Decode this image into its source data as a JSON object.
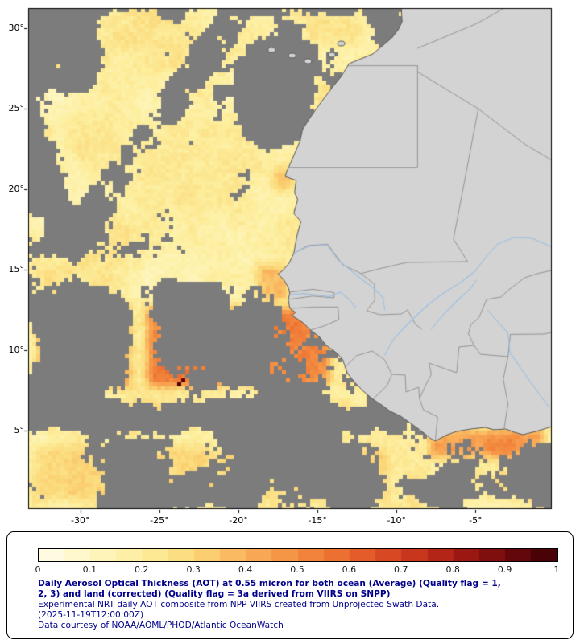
{
  "figure": {
    "background": "#ffffff"
  },
  "map": {
    "lon_min": -33.3,
    "lon_max": -0.18,
    "lat_min": 0.15,
    "lat_max": 31.25,
    "x_ticks": [
      {
        "label": "-30°",
        "lon": -30
      },
      {
        "label": "-25°",
        "lon": -25
      },
      {
        "label": "-20°",
        "lon": -20
      },
      {
        "label": "-15°",
        "lon": -15
      },
      {
        "label": "-10°",
        "lon": -10
      },
      {
        "label": "-5°",
        "lon": -5
      }
    ],
    "y_ticks": [
      {
        "label": "30°",
        "lat": 30
      },
      {
        "label": "25°",
        "lat": 25
      },
      {
        "label": "20°",
        "lat": 20
      },
      {
        "label": "15°",
        "lat": 15
      },
      {
        "label": "10°",
        "lat": 10
      },
      {
        "label": "5°",
        "lat": 5
      }
    ],
    "colors": {
      "no_data": "#7c7c7c",
      "land": "#d3d3d3",
      "coast": "#555555",
      "border": "#8c8c8c",
      "river": "#9cc0e4",
      "frame": "#000000",
      "axis_text": "#000000"
    }
  },
  "aot_palette": [
    [
      0.0,
      "#fffcea"
    ],
    [
      0.1,
      "#fef6c2"
    ],
    [
      0.2,
      "#fdee9d"
    ],
    [
      0.3,
      "#fbd879"
    ],
    [
      0.4,
      "#f9b05a"
    ],
    [
      0.5,
      "#f48d41"
    ],
    [
      0.6,
      "#e9662d"
    ],
    [
      0.7,
      "#d23f20"
    ],
    [
      0.8,
      "#a91c13"
    ],
    [
      0.9,
      "#71090c"
    ],
    [
      1.0,
      "#3c0004"
    ]
  ],
  "coastline": [
    [
      -9.7,
      31.25
    ],
    [
      -9.65,
      30.4
    ],
    [
      -9.9,
      29.9
    ],
    [
      -10.3,
      29.4
    ],
    [
      -11.5,
      28.4
    ],
    [
      -13.0,
      27.8
    ],
    [
      -13.5,
      27.0
    ],
    [
      -14.0,
      26.4
    ],
    [
      -14.85,
      25.3
    ],
    [
      -15.5,
      24.4
    ],
    [
      -15.95,
      23.7
    ],
    [
      -16.1,
      23.0
    ],
    [
      -16.45,
      22.2
    ],
    [
      -16.9,
      21.2
    ],
    [
      -17.05,
      20.8
    ],
    [
      -16.35,
      20.55
    ],
    [
      -16.45,
      19.8
    ],
    [
      -16.25,
      19.35
    ],
    [
      -16.5,
      18.5
    ],
    [
      -16.05,
      18.0
    ],
    [
      -16.3,
      17.1
    ],
    [
      -16.5,
      16.0
    ],
    [
      -16.8,
      15.4
    ],
    [
      -17.2,
      14.95
    ],
    [
      -17.5,
      14.72
    ],
    [
      -17.15,
      14.4
    ],
    [
      -16.85,
      13.9
    ],
    [
      -16.75,
      13.55
    ],
    [
      -16.85,
      13.15
    ],
    [
      -16.75,
      12.6
    ],
    [
      -16.4,
      12.35
    ],
    [
      -16.6,
      12.15
    ],
    [
      -15.9,
      11.7
    ],
    [
      -15.45,
      11.25
    ],
    [
      -14.9,
      10.85
    ],
    [
      -14.45,
      10.3
    ],
    [
      -13.75,
      9.8
    ],
    [
      -13.4,
      9.4
    ],
    [
      -13.25,
      8.95
    ],
    [
      -13.1,
      8.55
    ],
    [
      -12.6,
      7.95
    ],
    [
      -12.1,
      7.45
    ],
    [
      -11.5,
      6.95
    ],
    [
      -10.95,
      6.6
    ],
    [
      -10.4,
      6.2
    ],
    [
      -9.75,
      5.9
    ],
    [
      -9.1,
      5.45
    ],
    [
      -8.4,
      4.95
    ],
    [
      -7.9,
      4.55
    ],
    [
      -7.55,
      4.35
    ],
    [
      -6.9,
      4.7
    ],
    [
      -6.2,
      4.95
    ],
    [
      -5.3,
      5.1
    ],
    [
      -4.4,
      5.2
    ],
    [
      -3.85,
      5.05
    ],
    [
      -3.1,
      5.1
    ],
    [
      -2.55,
      4.9
    ],
    [
      -2.0,
      4.75
    ],
    [
      -1.6,
      4.85
    ],
    [
      -1.0,
      5.0
    ],
    [
      -0.18,
      5.25
    ],
    [
      -0.18,
      31.3
    ]
  ],
  "islands": [
    [
      -17.9,
      28.65
    ],
    [
      -16.6,
      28.3
    ],
    [
      -15.6,
      27.95
    ],
    [
      -14.1,
      28.35
    ],
    [
      -13.5,
      29.05
    ]
  ],
  "borders": [
    [
      [
        -3.1,
        31.3
      ],
      [
        -4.9,
        30.3
      ],
      [
        -6.6,
        29.6
      ],
      [
        -8.67,
        28.75
      ]
    ],
    [
      [
        -13.05,
        27.67
      ],
      [
        -8.67,
        27.67
      ]
    ],
    [
      [
        -8.67,
        27.67
      ],
      [
        -8.67,
        21.33
      ]
    ],
    [
      [
        -8.67,
        27.29
      ],
      [
        -4.83,
        24.99
      ]
    ],
    [
      [
        -4.83,
        24.99
      ],
      [
        -1.9,
        22.8
      ],
      [
        -0.18,
        21.8
      ]
    ],
    [
      [
        -17.05,
        21.33
      ],
      [
        -8.67,
        21.33
      ]
    ],
    [
      [
        -4.83,
        24.99
      ],
      [
        -6.4,
        16.9
      ],
      [
        -5.5,
        15.5
      ],
      [
        -9.35,
        15.45
      ],
      [
        -10.9,
        15.1
      ],
      [
        -12.25,
        14.76
      ]
    ],
    [
      [
        -16.5,
        16.02
      ],
      [
        -15.6,
        16.5
      ],
      [
        -14.35,
        16.58
      ],
      [
        -13.4,
        15.3
      ],
      [
        -12.25,
        14.76
      ]
    ],
    [
      [
        -12.25,
        14.76
      ],
      [
        -11.4,
        14.1
      ],
      [
        -11.37,
        13.1
      ],
      [
        -11.9,
        12.45
      ]
    ],
    [
      [
        -16.75,
        13.6
      ],
      [
        -15.3,
        13.78
      ],
      [
        -13.95,
        13.58
      ]
    ],
    [
      [
        -16.85,
        13.15
      ],
      [
        -15.3,
        13.36
      ],
      [
        -13.95,
        13.25
      ],
      [
        -13.95,
        13.58
      ]
    ],
    [
      [
        -16.75,
        12.6
      ],
      [
        -15.2,
        12.68
      ],
      [
        -13.7,
        12.68
      ]
    ],
    [
      [
        -13.7,
        12.68
      ],
      [
        -13.65,
        11.9
      ],
      [
        -14.6,
        11.5
      ],
      [
        -15.45,
        11.25
      ]
    ],
    [
      [
        -11.9,
        12.45
      ],
      [
        -11.05,
        12.2
      ],
      [
        -9.7,
        12.25
      ],
      [
        -9.3,
        12.5
      ],
      [
        -8.8,
        11.6
      ],
      [
        -8.4,
        11.3
      ]
    ],
    [
      [
        -13.25,
        8.95
      ],
      [
        -12.55,
        9.65
      ],
      [
        -11.55,
        9.95
      ],
      [
        -10.75,
        9.4
      ],
      [
        -10.3,
        8.5
      ]
    ],
    [
      [
        -11.5,
        6.95
      ],
      [
        -10.6,
        7.8
      ],
      [
        -10.3,
        8.5
      ]
    ],
    [
      [
        -10.3,
        8.5
      ],
      [
        -9.45,
        8.45
      ],
      [
        -9.4,
        7.4
      ],
      [
        -8.6,
        7.7
      ],
      [
        -8.55,
        7.0
      ]
    ],
    [
      [
        -8.55,
        7.0
      ],
      [
        -8.3,
        6.3
      ],
      [
        -7.4,
        5.85
      ],
      [
        -7.55,
        4.35
      ]
    ],
    [
      [
        -8.55,
        7.0
      ],
      [
        -8.1,
        7.95
      ],
      [
        -7.8,
        8.5
      ],
      [
        -7.95,
        9.2
      ],
      [
        -6.2,
        8.6
      ],
      [
        -6.05,
        10.2
      ],
      [
        -5.1,
        10.3
      ],
      [
        -4.7,
        9.75
      ],
      [
        -2.95,
        9.6
      ]
    ],
    [
      [
        -3.2,
        5.1
      ],
      [
        -2.95,
        6.65
      ],
      [
        -3.25,
        8.2
      ],
      [
        -2.95,
        9.6
      ]
    ],
    [
      [
        -2.95,
        9.6
      ],
      [
        -2.8,
        10.98
      ],
      [
        -0.7,
        11.0
      ],
      [
        -0.18,
        11.1
      ]
    ],
    [
      [
        -5.1,
        10.3
      ],
      [
        -5.45,
        11.0
      ],
      [
        -5.3,
        11.6
      ],
      [
        -4.8,
        12.0
      ],
      [
        -4.3,
        13.15
      ],
      [
        -3.4,
        13.3
      ],
      [
        -2.9,
        13.75
      ],
      [
        -1.9,
        14.5
      ],
      [
        -1.0,
        14.78
      ],
      [
        -0.18,
        14.95
      ]
    ]
  ],
  "rivers": [
    [
      [
        -16.5,
        16.02
      ],
      [
        -15.55,
        16.45
      ],
      [
        -14.4,
        16.55
      ],
      [
        -13.75,
        15.65
      ],
      [
        -12.95,
        15.0
      ],
      [
        -12.2,
        14.4
      ],
      [
        -11.45,
        13.85
      ],
      [
        -10.85,
        13.25
      ],
      [
        -10.75,
        12.5
      ]
    ],
    [
      [
        -16.78,
        13.45
      ],
      [
        -15.85,
        13.52
      ],
      [
        -15.0,
        13.42
      ],
      [
        -14.25,
        13.32
      ],
      [
        -13.55,
        13.6
      ],
      [
        -13.0,
        13.15
      ],
      [
        -12.55,
        12.6
      ]
    ],
    [
      [
        -10.75,
        9.7
      ],
      [
        -10.25,
        10.6
      ],
      [
        -9.45,
        11.45
      ],
      [
        -8.65,
        12.25
      ],
      [
        -7.85,
        12.95
      ],
      [
        -6.95,
        13.6
      ],
      [
        -5.95,
        14.2
      ],
      [
        -5.05,
        14.9
      ],
      [
        -4.25,
        15.9
      ],
      [
        -3.6,
        16.6
      ],
      [
        -2.55,
        17.0
      ],
      [
        -1.45,
        16.95
      ],
      [
        -0.6,
        16.6
      ],
      [
        -0.18,
        16.4
      ]
    ],
    [
      [
        -7.8,
        11.3
      ],
      [
        -7.05,
        12.2
      ],
      [
        -6.25,
        13.0
      ],
      [
        -5.35,
        13.8
      ],
      [
        -4.95,
        14.35
      ]
    ],
    [
      [
        -4.25,
        12.5
      ],
      [
        -2.95,
        11.05
      ],
      [
        -2.82,
        9.85
      ],
      [
        -1.95,
        8.6
      ],
      [
        -1.25,
        7.65
      ],
      [
        -0.35,
        6.45
      ]
    ]
  ],
  "data_regions": [
    {
      "lon": [
        -33.4,
        -13.8
      ],
      "lat": [
        13.8,
        31.4
      ],
      "bias": 0.24,
      "iadd": 0.0
    },
    {
      "lon": [
        -33.4,
        -28.3
      ],
      "lat": [
        25.5,
        31.4
      ],
      "bias": -0.3,
      "iadd": 0.0
    },
    {
      "lon": [
        -33.4,
        -30.1
      ],
      "lat": [
        15.5,
        23.5
      ],
      "bias": -0.34,
      "iadd": 0.0
    },
    {
      "lon": [
        -20.6,
        -14.6
      ],
      "lat": [
        22.3,
        29.6
      ],
      "bias": -0.34,
      "iadd": 0.0
    },
    {
      "lon": [
        -16.2,
        -11.8
      ],
      "lat": [
        28.4,
        31.4
      ],
      "bias": 0.18,
      "iadd": 0.05
    },
    {
      "lon": [
        -11.8,
        -9.4
      ],
      "lat": [
        28.8,
        31.4
      ],
      "bias": -0.35,
      "iadd": 0.0
    },
    {
      "lon": [
        -18.4,
        -15.9
      ],
      "lat": [
        19.2,
        21.9
      ],
      "bias": 0.18,
      "iadd": 0.14
    },
    {
      "lon": [
        -19.4,
        -16.3
      ],
      "lat": [
        12.6,
        15.9
      ],
      "bias": 0.12,
      "iadd": 0.18
    },
    {
      "lon": [
        -33.4,
        -26.3
      ],
      "lat": [
        7.0,
        13.6
      ],
      "bias": -0.32,
      "iadd": 0.2
    },
    {
      "lon": [
        -26.3,
        -13.6
      ],
      "lat": [
        7.2,
        13.2
      ],
      "bias": -0.03,
      "iadd": 0.3,
      "dark": true
    },
    {
      "lon": [
        -33.4,
        -9.0
      ],
      "lat": [
        4.6,
        7.2
      ],
      "bias": -0.33,
      "iadd": 0.1
    },
    {
      "lon": [
        -33.4,
        -10.0
      ],
      "lat": [
        0.1,
        4.6
      ],
      "bias": -0.04,
      "iadd": 0.08
    },
    {
      "lon": [
        -8.5,
        -0.1
      ],
      "lat": [
        2.8,
        5.6
      ],
      "bias": 0.1,
      "iadd": 0.26
    },
    {
      "lon": [
        -10.0,
        -0.1
      ],
      "lat": [
        0.1,
        2.8
      ],
      "bias": -0.22,
      "iadd": 0.05
    }
  ],
  "swath_gaps": [
    {
      "a": [
        -19.8,
        31.3
      ],
      "b": [
        -30.6,
        16.6
      ],
      "w": 0.7,
      "bias": -0.3
    }
  ],
  "legend": {
    "ticks": [
      "0",
      "0.1",
      "0.2",
      "0.3",
      "0.4",
      "0.5",
      "0.6",
      "0.7",
      "0.8",
      "0.9",
      "1"
    ],
    "tick_color": "#1a1a1a",
    "text_color": "#00008b",
    "lines": [
      "Daily Aerosol Optical Thickness (AOT) at 0.55 micron for both ocean (Average) (Quality flag = 1,",
      "2, 3) and land (corrected) (Quality flag = 3a derived from VIIRS on SNPP)",
      "Experimental NRT daily AOT composite from NPP VIIRS created from Unprojected Swath Data.",
      "(2025-11-19T12:00:00Z)",
      "Data courtesy of NOAA/AOML/PHOD/Atlantic OceanWatch"
    ]
  },
  "chart_data": {
    "type": "heatmap",
    "title": "Daily Aerosol Optical Thickness (AOT) at 0.55 micron",
    "colorbar_range": [
      0,
      1
    ],
    "colorbar_ticks": [
      0,
      0.1,
      0.2,
      0.3,
      0.4,
      0.5,
      0.6,
      0.7,
      0.8,
      0.9,
      1
    ],
    "lon_extent": [
      -33.3,
      -0.18
    ],
    "lat_extent": [
      0.15,
      31.25
    ],
    "regions_observed": [
      {
        "area": "Atlantic north of 15N",
        "aot_range": [
          0.1,
          0.3
        ]
      },
      {
        "area": "Atlantic 7N-13N between 26W and 14W",
        "aot_range": [
          0.3,
          0.7
        ]
      },
      {
        "area": "Coastal strip off Senegal 13N-16N",
        "aot_range": [
          0.3,
          0.55
        ]
      },
      {
        "area": "Gulf of Guinea coastal band 3N-6N east of 8W",
        "aot_range": [
          0.3,
          0.6
        ]
      },
      {
        "area": "Equatorial band south of 5N",
        "aot_range": [
          0.1,
          0.35
        ]
      },
      {
        "area": "Land surface and cloud/no-retrieval areas",
        "aot_range": null
      }
    ]
  }
}
